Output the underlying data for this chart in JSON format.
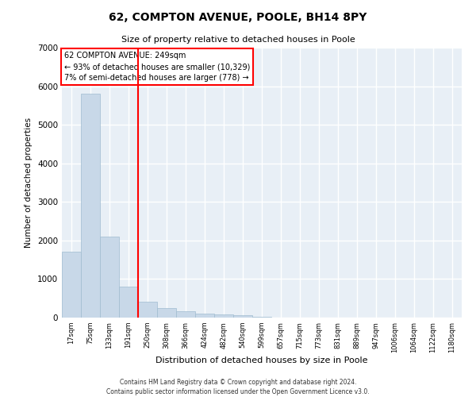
{
  "title": "62, COMPTON AVENUE, POOLE, BH14 8PY",
  "subtitle": "Size of property relative to detached houses in Poole",
  "xlabel": "Distribution of detached houses by size in Poole",
  "ylabel": "Number of detached properties",
  "bar_color": "#c8d8e8",
  "bar_edge_color": "#a0bcd0",
  "background_color": "#e8eff6",
  "grid_color": "#ffffff",
  "red_line_x": 3.5,
  "annotation_text": "62 COMPTON AVENUE: 249sqm\n← 93% of detached houses are smaller (10,329)\n7% of semi-detached houses are larger (778) →",
  "annotation_box_color": "white",
  "annotation_box_edge": "red",
  "footer_text": "Contains HM Land Registry data © Crown copyright and database right 2024.\nContains public sector information licensed under the Open Government Licence v3.0.",
  "categories": [
    "17sqm",
    "75sqm",
    "133sqm",
    "191sqm",
    "250sqm",
    "308sqm",
    "366sqm",
    "424sqm",
    "482sqm",
    "540sqm",
    "599sqm",
    "657sqm",
    "715sqm",
    "773sqm",
    "831sqm",
    "889sqm",
    "947sqm",
    "1006sqm",
    "1064sqm",
    "1122sqm",
    "1180sqm"
  ],
  "values": [
    1700,
    5800,
    2100,
    800,
    420,
    240,
    160,
    110,
    80,
    60,
    15,
    5,
    3,
    1,
    1,
    0,
    0,
    0,
    0,
    0,
    0
  ],
  "ylim": [
    0,
    7000
  ],
  "yticks": [
    0,
    1000,
    2000,
    3000,
    4000,
    5000,
    6000,
    7000
  ]
}
